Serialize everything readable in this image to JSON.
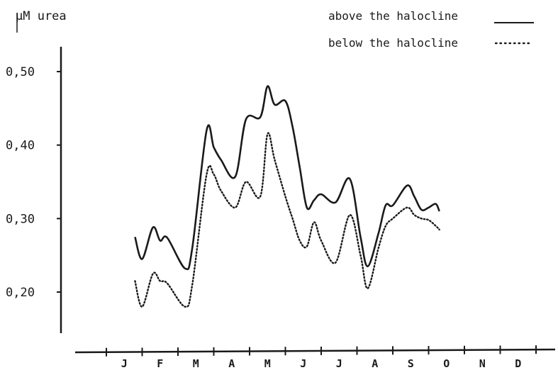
{
  "chart_data": {
    "type": "line",
    "ylabel": "µM urea",
    "xlabel": "",
    "categories": [
      "J",
      "F",
      "M",
      "A",
      "M",
      "J",
      "J",
      "A",
      "S",
      "O",
      "N",
      "D"
    ],
    "ylim": [
      0.15,
      0.53
    ],
    "yticks": [
      0.2,
      0.3,
      0.4,
      0.5
    ],
    "ytick_labels": [
      "0,20",
      "0,30",
      "0,40",
      "0,50"
    ],
    "legend_position": "top-right",
    "grid": false,
    "series": [
      {
        "name": "above the halocline",
        "style": "solid",
        "x": [
          0.8,
          1.0,
          1.3,
          1.5,
          1.7,
          2.2,
          2.4,
          2.8,
          3.0,
          3.2,
          3.6,
          3.9,
          4.3,
          4.5,
          4.7,
          5.0,
          5.2,
          5.4,
          5.6,
          5.8,
          6.0,
          6.4,
          6.8,
          7.1,
          7.3,
          7.6,
          7.8,
          8.0,
          8.4,
          8.6,
          8.8,
          9.0,
          9.2,
          9.3
        ],
        "values": [
          0.275,
          0.245,
          0.288,
          0.27,
          0.274,
          0.232,
          0.26,
          0.42,
          0.397,
          0.38,
          0.357,
          0.435,
          0.438,
          0.48,
          0.455,
          0.46,
          0.425,
          0.37,
          0.315,
          0.325,
          0.333,
          0.322,
          0.354,
          0.275,
          0.235,
          0.28,
          0.318,
          0.318,
          0.345,
          0.33,
          0.312,
          0.315,
          0.32,
          0.31
        ]
      },
      {
        "name": "below the halocline",
        "style": "dotted",
        "x": [
          0.8,
          1.0,
          1.3,
          1.5,
          1.7,
          2.2,
          2.4,
          2.8,
          3.0,
          3.2,
          3.6,
          3.9,
          4.3,
          4.5,
          4.7,
          5.0,
          5.2,
          5.4,
          5.6,
          5.8,
          6.0,
          6.4,
          6.8,
          7.1,
          7.3,
          7.6,
          7.8,
          8.0,
          8.4,
          8.6,
          8.8,
          9.0,
          9.2,
          9.3
        ],
        "values": [
          0.215,
          0.18,
          0.225,
          0.215,
          0.212,
          0.18,
          0.21,
          0.36,
          0.36,
          0.338,
          0.315,
          0.35,
          0.33,
          0.415,
          0.38,
          0.33,
          0.3,
          0.27,
          0.262,
          0.295,
          0.27,
          0.24,
          0.305,
          0.25,
          0.205,
          0.26,
          0.29,
          0.3,
          0.315,
          0.305,
          0.3,
          0.298,
          0.29,
          0.285
        ]
      }
    ]
  }
}
